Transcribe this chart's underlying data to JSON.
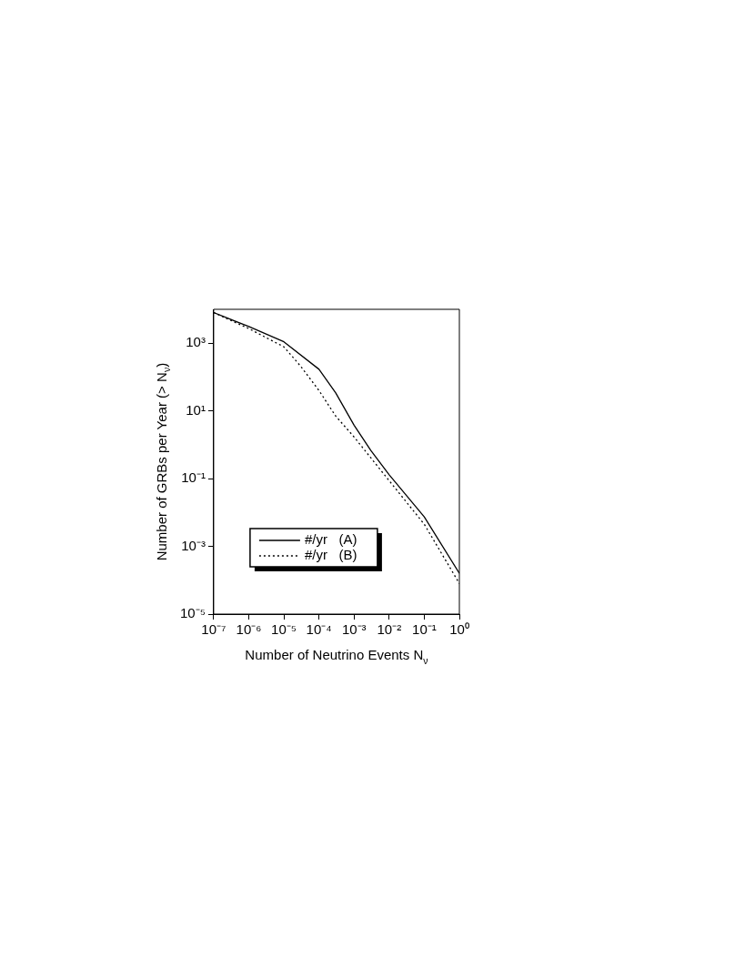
{
  "chart_data": {
    "type": "line",
    "xlabel": "Number of Neutrino Events N$_{ν}$",
    "ylabel": "Number of GRBs per Year (> N$_{ν}$)",
    "log": "xy",
    "grid": false,
    "legend": "bottom left",
    "marker": "none",
    "xlim": [
      1e-07,
      1
    ],
    "ylim": [
      1e-05,
      10000
    ],
    "xticks": [
      {
        "value": 1e-07,
        "label": "10⁻⁷"
      },
      {
        "value": 1e-06,
        "label": "10⁻⁶"
      },
      {
        "value": 1e-05,
        "label": "10⁻⁵"
      },
      {
        "value": 0.0001,
        "label": "10⁻⁴"
      },
      {
        "value": 0.001,
        "label": "10⁻³"
      },
      {
        "value": 0.01,
        "label": "10⁻²"
      },
      {
        "value": 0.1,
        "label": "10⁻¹"
      },
      {
        "value": 1,
        "label": "10⁰"
      }
    ],
    "yticks": [
      {
        "value": 1e-05,
        "label": "10⁻⁵"
      },
      {
        "value": 0.001,
        "label": "10⁻³"
      },
      {
        "value": 0.1,
        "label": "10⁻¹"
      },
      {
        "value": 10,
        "label": "10¹"
      },
      {
        "value": 1000,
        "label": "10³"
      }
    ],
    "series": [
      {
        "name": "#/yr   (A)",
        "color": "#000000",
        "line_style": "solid",
        "x": [
          1e-07,
          1e-06,
          1e-05,
          0.0001,
          0.0003,
          0.001,
          0.003,
          0.01,
          0.1,
          1
        ],
        "values": [
          8000,
          3100,
          1100,
          170,
          34,
          3.8,
          0.68,
          0.13,
          0.0074,
          0.00016
        ]
      },
      {
        "name": "#/yr   (B)",
        "color": "#000000",
        "line_style": "dotted",
        "x": [
          1e-07,
          1e-06,
          1e-05,
          3e-05,
          0.0001,
          0.0003,
          0.001,
          0.01,
          0.1,
          1
        ],
        "values": [
          8000,
          2700,
          780,
          210,
          40,
          7,
          1.7,
          0.087,
          0.0045,
          8e-05
        ]
      }
    ]
  }
}
